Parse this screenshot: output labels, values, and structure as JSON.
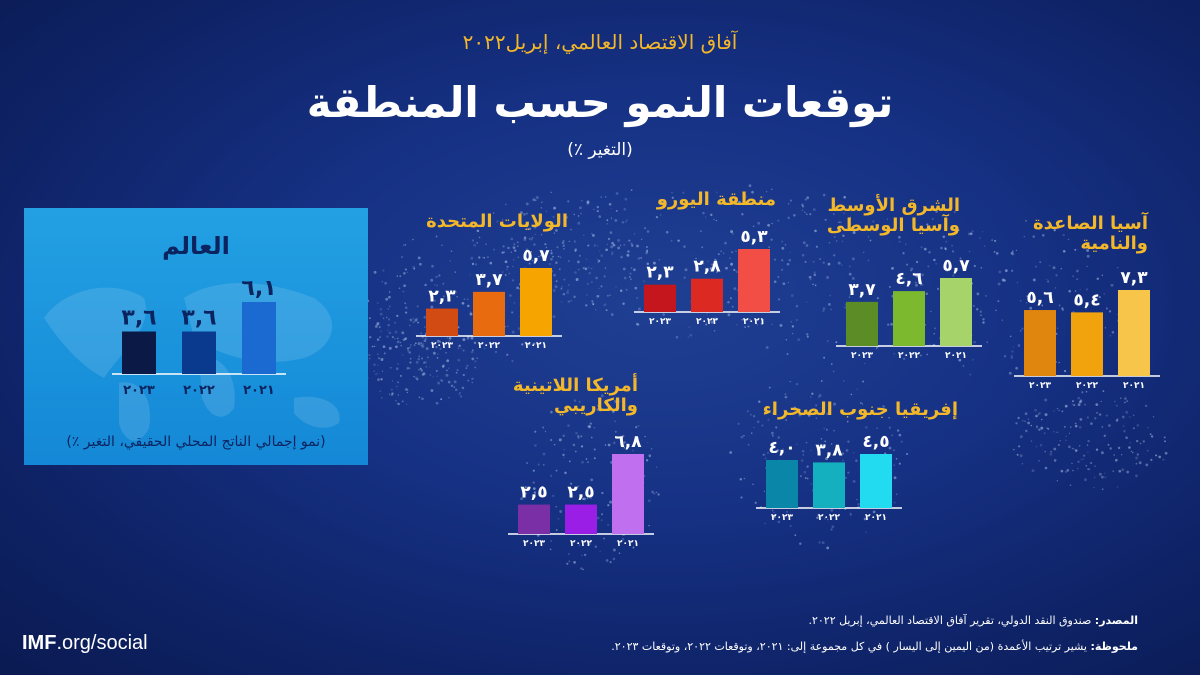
{
  "header": {
    "kicker": "آفاق الاقتصاد العالمي، إبريل٢٠٢٢",
    "title": "توقعات النمو حسب المنطقة",
    "subtitle": "(التغير ٪)"
  },
  "chart_data": [
    {
      "type": "bar",
      "name": "world",
      "title": "العالم",
      "caption": "(نمو إجمالي الناتج المحلي الحقيقي، التغير ٪)",
      "categories": [
        "٢٠٢٣",
        "٢٠٢٢",
        "٢٠٢١"
      ],
      "values": [
        3.6,
        3.6,
        6.1
      ],
      "value_labels": [
        "٣,٦",
        "٣,٦",
        "٦,١"
      ],
      "colors": [
        "#0a1946",
        "#0a3a8e",
        "#1a6ad2"
      ],
      "label_color": "#0b2460"
    },
    {
      "type": "bar",
      "name": "united-states",
      "title_lines": [
        "الولايات المتحدة"
      ],
      "categories": [
        "٢٠٢٣",
        "٢٠٢٢",
        "٢٠٢١"
      ],
      "values": [
        2.3,
        3.7,
        5.7
      ],
      "value_labels": [
        "٢,٣",
        "٣,٧",
        "٥,٧"
      ],
      "colors": [
        "#d24b12",
        "#e96b10",
        "#f5a400"
      ]
    },
    {
      "type": "bar",
      "name": "euro-area",
      "title_lines": [
        "منطقة اليورو"
      ],
      "categories": [
        "٢٠٢٣",
        "٢٠٢٢",
        "٢٠٢١"
      ],
      "values": [
        2.3,
        2.8,
        5.3
      ],
      "value_labels": [
        "٢,٣",
        "٢,٨",
        "٥,٣"
      ],
      "colors": [
        "#c4161c",
        "#dc2a22",
        "#f24e46"
      ]
    },
    {
      "type": "bar",
      "name": "middle-east-central-asia",
      "title_lines": [
        "الشرق الأوسط",
        "وآسيا الوسطى"
      ],
      "categories": [
        "٢٠٢٣",
        "٢٠٢٢",
        "٢٠٢١"
      ],
      "values": [
        3.7,
        4.6,
        5.7
      ],
      "value_labels": [
        "٣,٧",
        "٤,٦",
        "٥,٧"
      ],
      "colors": [
        "#5c8c26",
        "#7db92f",
        "#a6d46a"
      ]
    },
    {
      "type": "bar",
      "name": "emerging-developing-asia",
      "title_lines": [
        "آسيا الصاعدة",
        "والنامية"
      ],
      "categories": [
        "٢٠٢٣",
        "٢٠٢٢",
        "٢٠٢١"
      ],
      "values": [
        5.6,
        5.4,
        7.3
      ],
      "value_labels": [
        "٥,٦",
        "٥,٤",
        "٧,٣"
      ],
      "colors": [
        "#e0850e",
        "#f0a30c",
        "#f6c54a"
      ]
    },
    {
      "type": "bar",
      "name": "latin-america-caribbean",
      "title_lines": [
        "أمريكا اللاتينية",
        "والكاريبي"
      ],
      "categories": [
        "٢٠٢٣",
        "٢٠٢٢",
        "٢٠٢١"
      ],
      "values": [
        2.5,
        2.5,
        6.8
      ],
      "value_labels": [
        "٢,٥",
        "٢,٥",
        "٦,٨"
      ],
      "colors": [
        "#7b2fa6",
        "#9a1ee6",
        "#c070ee"
      ]
    },
    {
      "type": "bar",
      "name": "sub-saharan-africa",
      "title_lines": [
        "إفريقيا جنوب الصحراء"
      ],
      "categories": [
        "٢٠٢٣",
        "٢٠٢٢",
        "٢٠٢١"
      ],
      "values": [
        4.0,
        3.8,
        4.5
      ],
      "value_labels": [
        "٤,٠",
        "٣,٨",
        "٤,٥"
      ],
      "colors": [
        "#0a86a8",
        "#14b0bf",
        "#22dbf0"
      ]
    }
  ],
  "footer": {
    "source_label": "المصدر:",
    "source_text": "صندوق النقد الدولي، تقرير آفاق الاقتصاد العالمي، إبريل ٢٠٢٢.",
    "note_label": "ملحوظة:",
    "note_text": "يشير ترتيب الأعمدة (من اليمين إلى اليسار ) في كل مجموعة إلى: ٢٠٢١، وتوقعات ٢٠٢٢، وتوقعات ٢٠٢٣."
  },
  "logo": {
    "bold": "IMF",
    "rest": ".org/social"
  }
}
